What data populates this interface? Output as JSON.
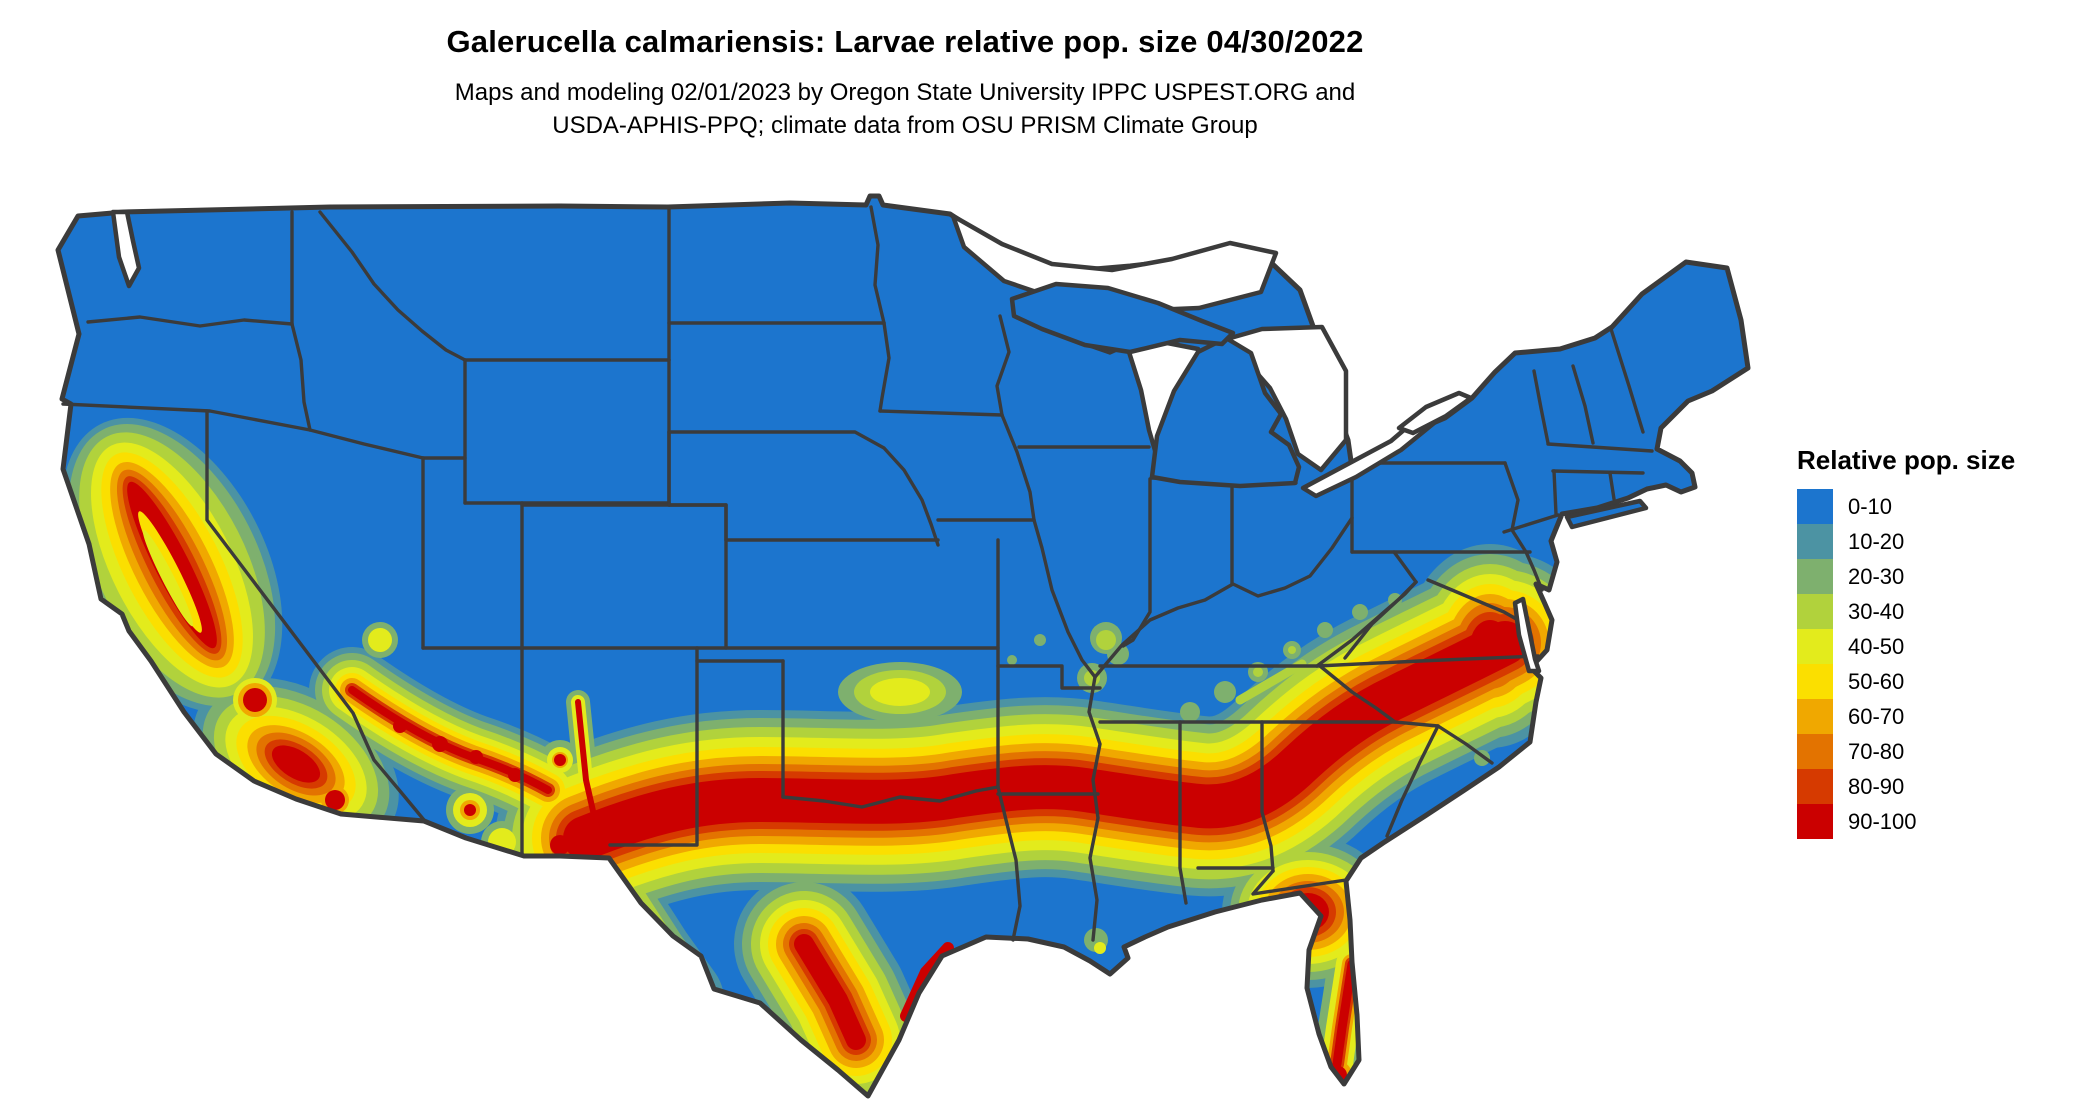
{
  "header": {
    "title": "Galerucella calmariensis: Larvae relative pop. size 04/30/2022",
    "subtitle_line1": "Maps and modeling 02/01/2023 by Oregon State University IPPC USPEST.ORG and",
    "subtitle_line2": "USDA-APHIS-PPQ; climate data from OSU PRISM Climate Group"
  },
  "legend": {
    "title": "Relative pop. size",
    "items": [
      {
        "label": "0-10",
        "color": "#1C75CE"
      },
      {
        "label": "10-20",
        "color": "#4C93A3"
      },
      {
        "label": "20-30",
        "color": "#7EB06E"
      },
      {
        "label": "30-40",
        "color": "#B1D23C"
      },
      {
        "label": "40-50",
        "color": "#E3EB1C"
      },
      {
        "label": "50-60",
        "color": "#FBDF00"
      },
      {
        "label": "60-70",
        "color": "#F0A800"
      },
      {
        "label": "70-80",
        "color": "#E37300"
      },
      {
        "label": "80-90",
        "color": "#D63A00"
      },
      {
        "label": "90-100",
        "color": "#CB0000"
      }
    ]
  },
  "palette": {
    "c0_10": "#1C75CE",
    "c10_20": "#4C93A3",
    "c20_30": "#7EB06E",
    "c30_40": "#B1D23C",
    "c40_50": "#E3EB1C",
    "c50_60": "#FBDF00",
    "c60_70": "#F0A800",
    "c70_80": "#E37300",
    "c80_90": "#D63A00",
    "c90_100": "#CB0000",
    "border": "#3B3B3B",
    "water": "#FFFFFF",
    "background": "#FFFFFF",
    "text": "#000000"
  },
  "chart_data": {
    "type": "heatmap",
    "title": "Galerucella calmariensis: Larvae relative pop. size 04/30/2022",
    "subtitle": "Maps and modeling 02/01/2023 by Oregon State University IPPC USPEST.ORG and USDA-APHIS-PPQ; climate data from OSU PRISM Climate Group",
    "legend_title": "Relative pop. size",
    "legend_position": "right",
    "bins": [
      {
        "range": "0-10",
        "color": "#1C75CE"
      },
      {
        "range": "10-20",
        "color": "#4C93A3"
      },
      {
        "range": "20-30",
        "color": "#7EB06E"
      },
      {
        "range": "30-40",
        "color": "#B1D23C"
      },
      {
        "range": "40-50",
        "color": "#E3EB1C"
      },
      {
        "range": "50-60",
        "color": "#FBDF00"
      },
      {
        "range": "60-70",
        "color": "#F0A800"
      },
      {
        "range": "70-80",
        "color": "#E37300"
      },
      {
        "range": "80-90",
        "color": "#D63A00"
      },
      {
        "range": "90-100",
        "color": "#CB0000"
      }
    ],
    "high_value_regions": [
      "California Central Valley foothills and coast ranges",
      "Southern California",
      "Central Arizona Mogollon Rim and SE Arizona",
      "Southern New Mexico and Rio Grande valley of west Texas",
      "Band along Texas/Oklahoma Red River through Arkansas, northern Mississippi, Alabama, Georgia, upstate South Carolina, central North Carolina to coastal Virginia",
      "South Texas near the Gulf coast",
      "North-central Florida and Florida east coast"
    ],
    "low_value_regions": [
      "Pacific Northwest, Great Basin, Rockies, northern Plains, Midwest, Northeast (0-10 class)"
    ]
  }
}
